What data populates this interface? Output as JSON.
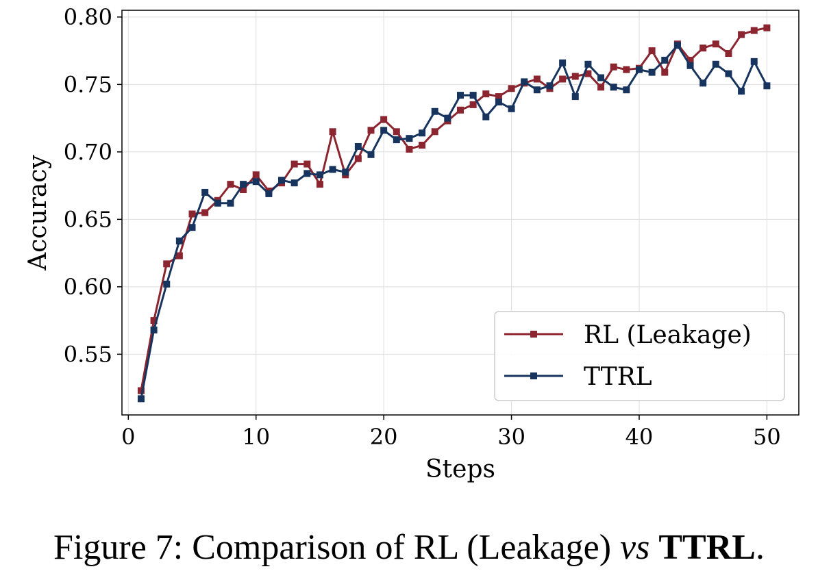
{
  "chart_data": {
    "type": "line",
    "xlabel": "Steps",
    "ylabel": "Accuracy",
    "xlim": [
      -0.5,
      52.5
    ],
    "ylim": [
      0.505,
      0.805
    ],
    "xticks": [
      0,
      10,
      20,
      30,
      40,
      50
    ],
    "xtick_labels": [
      "0",
      "10",
      "20",
      "30",
      "40",
      "50"
    ],
    "yticks": [
      0.55,
      0.6,
      0.65,
      0.7,
      0.75,
      0.8
    ],
    "ytick_labels": [
      "0.55",
      "0.60",
      "0.65",
      "0.70",
      "0.75",
      "0.80"
    ],
    "grid": true,
    "legend_position": "lower-right",
    "x": [
      1,
      2,
      3,
      4,
      5,
      6,
      7,
      8,
      9,
      10,
      11,
      12,
      13,
      14,
      15,
      16,
      17,
      18,
      19,
      20,
      21,
      22,
      23,
      24,
      25,
      26,
      27,
      28,
      29,
      30,
      31,
      32,
      33,
      34,
      35,
      36,
      37,
      38,
      39,
      40,
      41,
      42,
      43,
      44,
      45,
      46,
      47,
      48,
      49,
      50
    ],
    "series": [
      {
        "name": "RL (Leakage)",
        "color": "#8b2530",
        "marker": "square",
        "values": [
          0.523,
          0.575,
          0.617,
          0.623,
          0.654,
          0.655,
          0.664,
          0.676,
          0.672,
          0.683,
          0.671,
          0.677,
          0.691,
          0.691,
          0.676,
          0.715,
          0.683,
          0.695,
          0.716,
          0.724,
          0.715,
          0.702,
          0.705,
          0.715,
          0.723,
          0.731,
          0.735,
          0.743,
          0.741,
          0.747,
          0.751,
          0.754,
          0.747,
          0.754,
          0.756,
          0.758,
          0.748,
          0.763,
          0.761,
          0.762,
          0.775,
          0.759,
          0.78,
          0.768,
          0.777,
          0.78,
          0.773,
          0.787,
          0.79,
          0.792
        ]
      },
      {
        "name": "TTRL",
        "color": "#16345e",
        "marker": "square",
        "values": [
          0.517,
          0.568,
          0.602,
          0.634,
          0.644,
          0.67,
          0.662,
          0.662,
          0.676,
          0.678,
          0.669,
          0.679,
          0.677,
          0.684,
          0.683,
          0.687,
          0.685,
          0.704,
          0.698,
          0.716,
          0.709,
          0.71,
          0.714,
          0.73,
          0.725,
          0.742,
          0.742,
          0.726,
          0.737,
          0.732,
          0.752,
          0.746,
          0.749,
          0.766,
          0.741,
          0.765,
          0.755,
          0.748,
          0.746,
          0.761,
          0.759,
          0.768,
          0.779,
          0.764,
          0.751,
          0.765,
          0.758,
          0.745,
          0.767,
          0.749
        ]
      }
    ]
  },
  "caption": {
    "prefix": "Figure 7: Comparison of RL (Leakage) ",
    "vs": "vs",
    "space": " ",
    "bold": "TTRL",
    "suffix": "."
  }
}
